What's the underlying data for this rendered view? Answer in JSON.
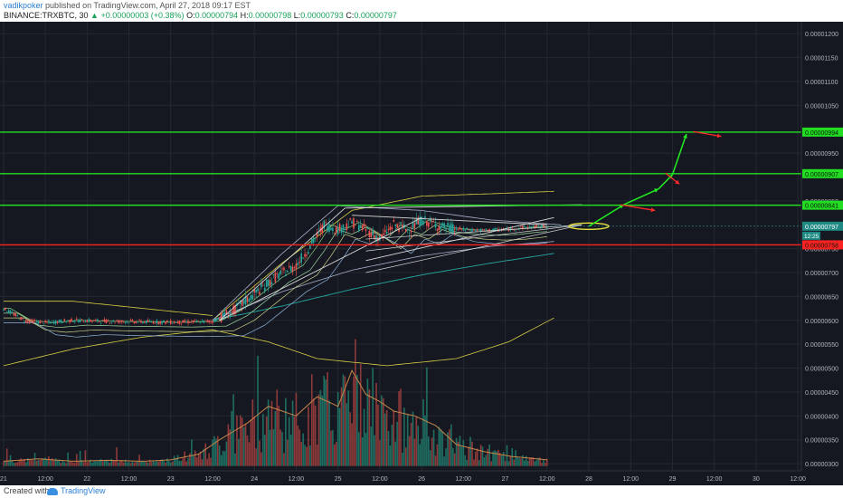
{
  "header": {
    "author": "vadikpoker",
    "published_text": "published on TradingView.com, April 27, 2018 09:17 EST",
    "symbol_line": "BINANCE:TRXBTC, 30",
    "change": "+0.00000003 (+0.38%)",
    "open_label": "O:",
    "open": "0.00000794",
    "high_label": "H:",
    "high": "0.00000798",
    "low_label": "L:",
    "low": "0.00000793",
    "close_label": "C:",
    "close": "0.00000797"
  },
  "footer": {
    "created": "Created with",
    "brand": "TradingView"
  },
  "colors": {
    "background": "#151821",
    "grid": "#24282f",
    "green_line": "#22dd22",
    "red_line": "#ff2222",
    "up_candle": "#26a69a",
    "down_candle": "#ef5350",
    "yellow": "#d8cf45",
    "white_line": "#d8d8d8"
  },
  "chart_data": {
    "type": "candlestick",
    "y_axis": {
      "ticks": [
        "0.00001200",
        "0.00001150",
        "0.00001100",
        "0.00001050",
        "0.00000950",
        "0.00000850",
        "0.00000750",
        "0.00000700",
        "0.00000650",
        "0.00000600",
        "0.00000550",
        "0.00000500",
        "0.00000450",
        "0.00000400",
        "0.00000350",
        "0.00000300"
      ],
      "range": [
        2.85e-06,
        1.225e-05
      ]
    },
    "x_axis": {
      "ticks": [
        {
          "label": "21",
          "t": 0
        },
        {
          "label": "12:00",
          "t": 12
        },
        {
          "label": "22",
          "t": 24
        },
        {
          "label": "12:00",
          "t": 36
        },
        {
          "label": "23",
          "t": 48
        },
        {
          "label": "12:00",
          "t": 60
        },
        {
          "label": "24",
          "t": 72
        },
        {
          "label": "12:00",
          "t": 84
        },
        {
          "label": "25",
          "t": 96
        },
        {
          "label": "12:00",
          "t": 108
        },
        {
          "label": "26",
          "t": 120
        },
        {
          "label": "12:00",
          "t": 132
        },
        {
          "label": "27",
          "t": 144
        },
        {
          "label": "12:00",
          "t": 156
        },
        {
          "label": "28",
          "t": 168
        },
        {
          "label": "12:00",
          "t": 180
        },
        {
          "label": "29",
          "t": 192
        },
        {
          "label": "12:00",
          "t": 204
        },
        {
          "label": "30",
          "t": 216
        },
        {
          "label": "12:00",
          "t": 228
        }
      ],
      "range_hours": [
        -1,
        229
      ]
    },
    "horizontal_levels": [
      {
        "value": 9.94e-06,
        "label": "0.00000994",
        "color": "#22dd22"
      },
      {
        "value": 9.07e-06,
        "label": "0.00000907",
        "color": "#22dd22"
      },
      {
        "value": 8.41e-06,
        "label": "0.00000841",
        "color": "#22dd22"
      },
      {
        "value": 7.58e-06,
        "label": "0.00000758",
        "color": "#ff2222"
      }
    ],
    "last_price": {
      "value": 7.97e-06,
      "label": "0.00000797",
      "countdown": "12:25"
    },
    "price_keypoints": [
      [
        0,
        6.25e-06
      ],
      [
        6,
        6e-06
      ],
      [
        12,
        5.95e-06
      ],
      [
        20,
        6e-06
      ],
      [
        30,
        5.98e-06
      ],
      [
        40,
        5.97e-06
      ],
      [
        50,
        5.96e-06
      ],
      [
        60,
        5.98e-06
      ],
      [
        66,
        6.2e-06
      ],
      [
        72,
        6.55e-06
      ],
      [
        78,
        6.9e-06
      ],
      [
        84,
        7.15e-06
      ],
      [
        88,
        7.55e-06
      ],
      [
        92,
        8e-06
      ],
      [
        96,
        7.9e-06
      ],
      [
        100,
        8.05e-06
      ],
      [
        104,
        7.9e-06
      ],
      [
        108,
        7.7e-06
      ],
      [
        112,
        8e-06
      ],
      [
        116,
        7.9e-06
      ],
      [
        120,
        8.1e-06
      ],
      [
        126,
        7.95e-06
      ],
      [
        132,
        7.9e-06
      ],
      [
        138,
        7.88e-06
      ],
      [
        144,
        7.9e-06
      ],
      [
        150,
        7.95e-06
      ],
      [
        156,
        7.97e-06
      ]
    ],
    "volume_profile": [
      [
        0,
        3.05e-06
      ],
      [
        10,
        3.1e-06
      ],
      [
        20,
        3.05e-06
      ],
      [
        30,
        3.07e-06
      ],
      [
        40,
        3.05e-06
      ],
      [
        48,
        3.08e-06
      ],
      [
        56,
        3.2e-06
      ],
      [
        62,
        3.5e-06
      ],
      [
        70,
        3.85e-06
      ],
      [
        76,
        4.2e-06
      ],
      [
        84,
        4e-06
      ],
      [
        90,
        4.4e-06
      ],
      [
        96,
        4.2e-06
      ],
      [
        100,
        4.95e-06
      ],
      [
        104,
        4.45e-06
      ],
      [
        108,
        4.3e-06
      ],
      [
        112,
        4.1e-06
      ],
      [
        118,
        4e-06
      ],
      [
        124,
        3.8e-06
      ],
      [
        130,
        3.4e-06
      ],
      [
        138,
        3.25e-06
      ],
      [
        146,
        3.15e-06
      ],
      [
        156,
        3.08e-06
      ]
    ],
    "bands": {
      "yellow_upper": [
        [
          60,
          6e-06
        ],
        [
          80,
          7.2e-06
        ],
        [
          100,
          8.3e-06
        ],
        [
          120,
          8.6e-06
        ],
        [
          140,
          8.65e-06
        ],
        [
          158,
          8.7e-06
        ]
      ],
      "yellow_lower": [
        [
          0,
          5.05e-06
        ],
        [
          20,
          5.4e-06
        ],
        [
          40,
          5.65e-06
        ],
        [
          60,
          5.8e-06
        ],
        [
          76,
          5.55e-06
        ],
        [
          90,
          5.2e-06
        ],
        [
          110,
          5.05e-06
        ],
        [
          130,
          5.2e-06
        ],
        [
          145,
          5.55e-06
        ],
        [
          158,
          6.05e-06
        ]
      ],
      "yellow_old_upper": [
        [
          0,
          6.4e-06
        ],
        [
          20,
          6.4e-06
        ],
        [
          40,
          6.25e-06
        ],
        [
          60,
          6.1e-06
        ]
      ],
      "teal_ma": [
        [
          60,
          6e-06
        ],
        [
          80,
          6.3e-06
        ],
        [
          100,
          6.65e-06
        ],
        [
          120,
          6.95e-06
        ],
        [
          140,
          7.2e-06
        ],
        [
          158,
          7.4e-06
        ]
      ],
      "white_upper": [
        [
          60,
          6e-06
        ],
        [
          80,
          7.4e-06
        ],
        [
          96,
          8.4e-06
        ],
        [
          120,
          8.3e-06
        ],
        [
          140,
          8.1e-06
        ],
        [
          160,
          8e-06
        ]
      ],
      "white_lower": [
        [
          60,
          6e-06
        ],
        [
          80,
          6.6e-06
        ],
        [
          100,
          7.05e-06
        ],
        [
          120,
          7.35e-06
        ],
        [
          140,
          7.55e-06
        ],
        [
          158,
          7.65e-06
        ]
      ]
    },
    "white_fan": [
      [
        [
          62,
          6e-06
        ],
        [
          98,
          8.35e-06
        ]
      ],
      [
        [
          98,
          8.35e-06
        ],
        [
          166,
          8.42e-06
        ]
      ],
      [
        [
          62,
          6e-06
        ],
        [
          120,
          8.15e-06
        ]
      ],
      [
        [
          104,
          7.25e-06
        ],
        [
          158,
          8.15e-06
        ]
      ],
      [
        [
          100,
          8.2e-06
        ],
        [
          156,
          8e-06
        ]
      ]
    ],
    "projection_green": [
      [
        168,
        7.97e-06
      ],
      [
        178,
        8.42e-06
      ],
      [
        188,
        8.75e-06
      ],
      [
        192,
        9.05e-06
      ],
      [
        196,
        9.9e-06
      ]
    ],
    "projection_red": [
      [
        [
          177,
          8.42e-06
        ],
        [
          187,
          8.3e-06
        ]
      ],
      [
        [
          190,
          9.08e-06
        ],
        [
          194,
          8.85e-06
        ]
      ],
      [
        [
          198,
          9.95e-06
        ],
        [
          206,
          9.85e-06
        ]
      ]
    ],
    "ellipse": {
      "t": 168,
      "value": 7.97e-06
    }
  }
}
